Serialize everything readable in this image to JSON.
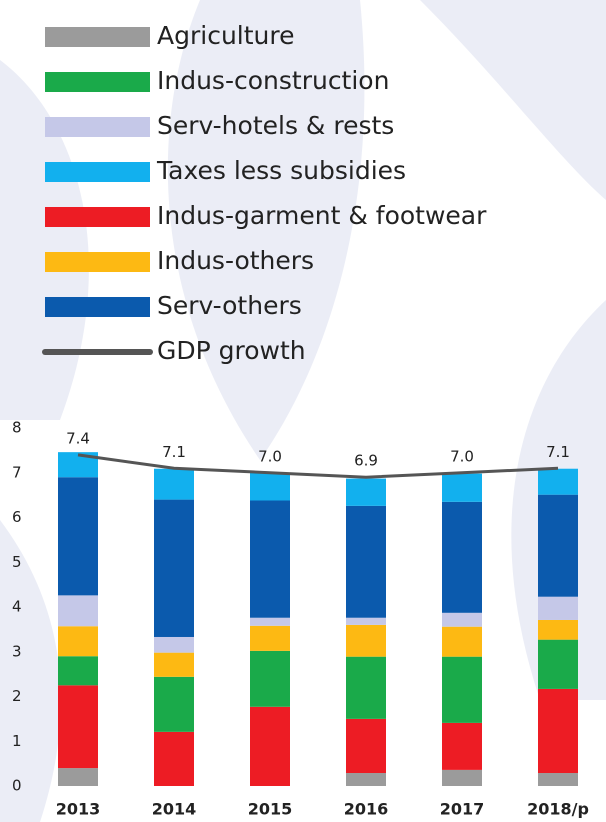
{
  "chart_data": {
    "type": "stacked-bar-line",
    "categories": [
      "2013",
      "2014",
      "2015",
      "2016",
      "2017",
      "2018/p"
    ],
    "series": [
      {
        "name": "Agriculture",
        "color": "#9b9b9b",
        "values": [
          0.4,
          0,
          0,
          0.29,
          0.36,
          0.29
        ]
      },
      {
        "name": "Indus-garment & footwear",
        "color": "#ed1c24",
        "values": [
          1.85,
          1.21,
          1.77,
          1.21,
          1.05,
          1.88
        ]
      },
      {
        "name": "Indus-construction",
        "color": "#1aaa4a",
        "values": [
          0.65,
          1.23,
          1.25,
          1.39,
          1.48,
          1.1
        ]
      },
      {
        "name": "Indus-others",
        "color": "#fdb913",
        "values": [
          0.67,
          0.54,
          0.56,
          0.71,
          0.67,
          0.44
        ]
      },
      {
        "name": "Serv-hotels & rests",
        "color": "#c5c8e8",
        "values": [
          0.69,
          0.35,
          0.18,
          0.16,
          0.31,
          0.52
        ]
      },
      {
        "name": "Serv-others",
        "color": "#0b5aad",
        "values": [
          2.64,
          3.07,
          2.62,
          2.5,
          2.48,
          2.28
        ]
      },
      {
        "name": "Taxes less subsidies",
        "color": "#12b0ee",
        "values": [
          0.56,
          0.69,
          0.62,
          0.61,
          0.63,
          0.58
        ]
      },
      {
        "name": "GDP growth",
        "color": "#555555",
        "type": "line",
        "values": [
          7.4,
          7.1,
          7.0,
          6.9,
          7.0,
          7.1
        ],
        "value_labels": [
          "7.4",
          "7.1",
          "7.0",
          "6.9",
          "7.0",
          "7.1"
        ]
      }
    ],
    "ylim": [
      0,
      8
    ],
    "yticks": [
      0,
      1,
      2,
      3,
      4,
      5,
      6,
      7,
      8
    ],
    "grid": false
  }
}
